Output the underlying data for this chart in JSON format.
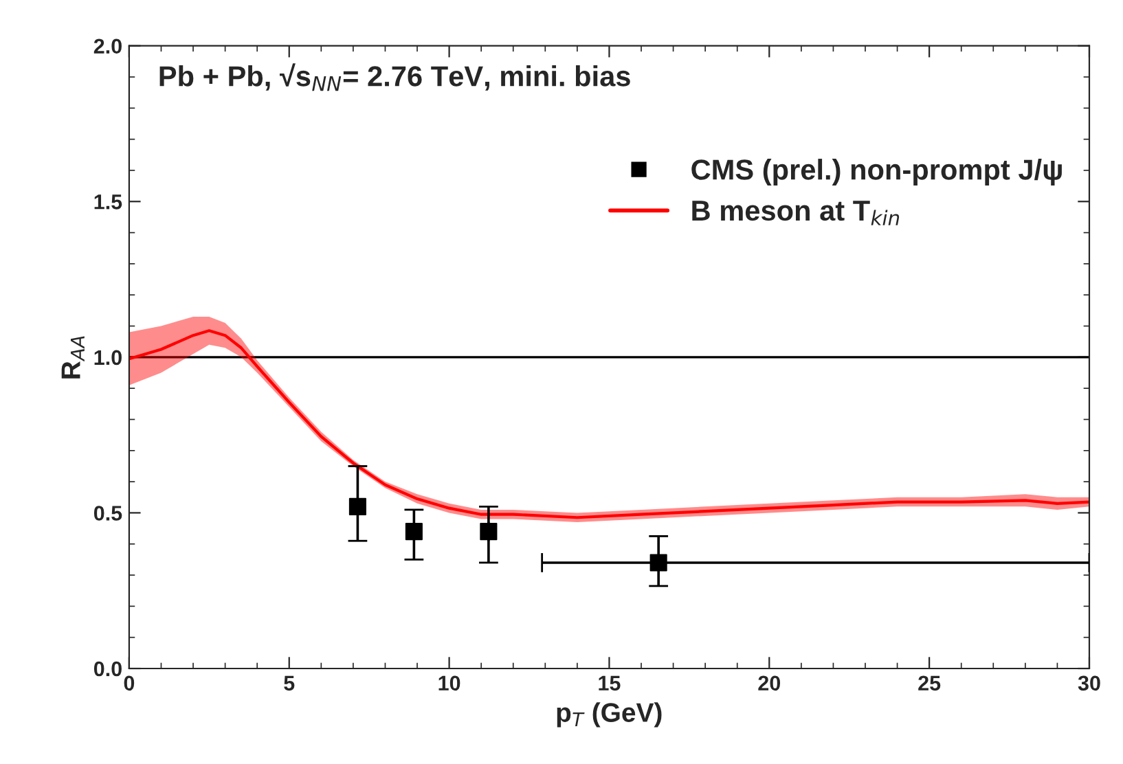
{
  "chart_data": {
    "type": "scatter",
    "xlabel": "p$_{T}$ (GeV)",
    "ylabel": "R$_{AA}$",
    "annotations": [
      "Pb + Pb, √s$_{NN}$= 2.76 TeV, mini. bias"
    ],
    "series": [
      {
        "name": "CMS (prel.) non-prompt J/ψ",
        "color": "#000000",
        "marker": "square",
        "x": [
          7.14,
          8.9,
          11.23,
          16.54
        ],
        "values": [
          0.52,
          0.44,
          0.44,
          0.34
        ],
        "errors": [
          [
            0.41,
            0.65
          ],
          [
            0.35,
            0.51
          ],
          [
            0.34,
            0.52
          ],
          [
            0.265,
            0.425
          ]
        ],
        "xerrors": [
          null,
          null,
          null,
          [
            12.9,
            30
          ]
        ]
      },
      {
        "name": "B meson at T$_{kin}$",
        "type": "line",
        "color": "#ff0000",
        "marker": "none",
        "line_style": "solid",
        "x": [
          0,
          1,
          2,
          2.5,
          3,
          3.5,
          4,
          5,
          6,
          7,
          8,
          9,
          10,
          11,
          12,
          14,
          16,
          18,
          20,
          22,
          24,
          26,
          28,
          29,
          30
        ],
        "values": [
          0.995,
          1.025,
          1.07,
          1.085,
          1.07,
          1.03,
          0.97,
          0.855,
          0.745,
          0.66,
          0.59,
          0.545,
          0.515,
          0.495,
          0.495,
          0.485,
          0.495,
          0.505,
          0.515,
          0.525,
          0.535,
          0.535,
          0.54,
          0.53,
          0.535
        ],
        "lower": [
          0.91,
          0.95,
          1.01,
          1.04,
          1.03,
          1.0,
          0.95,
          0.84,
          0.73,
          0.65,
          0.58,
          0.53,
          0.5,
          0.48,
          0.48,
          0.47,
          0.48,
          0.49,
          0.5,
          0.51,
          0.52,
          0.52,
          0.52,
          0.51,
          0.52
        ],
        "upper": [
          1.08,
          1.1,
          1.13,
          1.13,
          1.11,
          1.06,
          0.99,
          0.87,
          0.76,
          0.67,
          0.6,
          0.56,
          0.53,
          0.51,
          0.51,
          0.5,
          0.51,
          0.52,
          0.53,
          0.54,
          0.55,
          0.55,
          0.56,
          0.55,
          0.55
        ]
      }
    ],
    "ref_lines": [
      {
        "axis": "y",
        "value": 1.0,
        "label": null,
        "color": "#000000"
      }
    ],
    "xlim": [
      0,
      30
    ],
    "xticks": [
      0,
      5,
      10,
      15,
      20,
      25,
      30
    ],
    "ylim": [
      0.0,
      2.0
    ],
    "yticks": [
      {
        "value": 0.0,
        "label": "0.0"
      },
      0.5,
      {
        "value": 1.0,
        "label": "1.0"
      },
      1.5,
      {
        "value": 2.0,
        "label": "2.0"
      }
    ],
    "grid": false,
    "legend": "top right"
  }
}
